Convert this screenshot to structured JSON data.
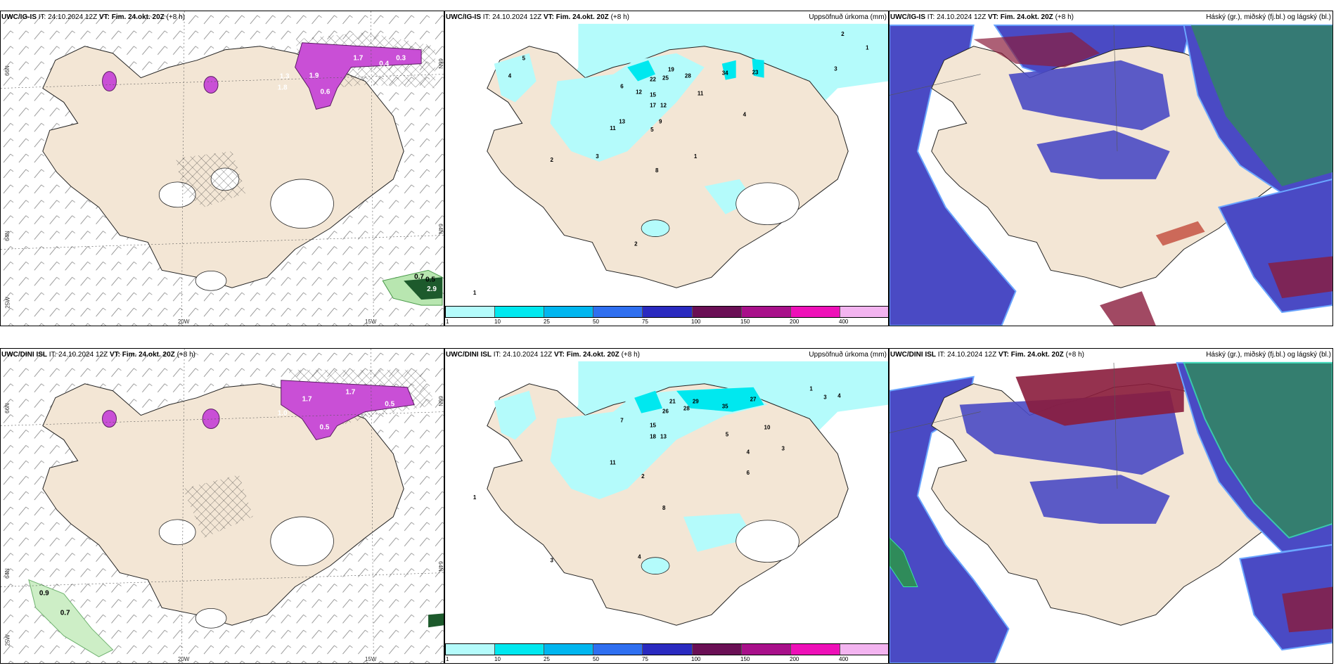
{
  "panels": [
    {
      "id": "top-left",
      "model": "UWC/IG-IS",
      "it": "IT: 24.10.2024 12Z",
      "vt_label": "VT:",
      "vt": "Fim. 24.okt. 20Z",
      "lead": "(+8 h)",
      "right_title": "",
      "axis": {
        "lat1": "66N",
        "lat2": "64N",
        "lat3": "25W",
        "lon1": "20W",
        "lon2": "15W",
        "lat_right": "66N",
        "lat_right2": "64N"
      },
      "labels": [
        "1.7",
        "0.4",
        "0.3",
        "1.9",
        "1.8",
        "1.3",
        "0.6",
        "0.7",
        "0.5",
        "2.9"
      ]
    },
    {
      "id": "top-mid",
      "model": "UWC/IG-IS",
      "it": "IT: 24.10.2024 12Z",
      "vt_label": "VT:",
      "vt": "Fim. 24.okt. 20Z",
      "lead": "(+8 h)",
      "right_title": "Uppsöfnuð úrkoma (mm)",
      "labels": [
        "2",
        "1",
        "3",
        "5",
        "4",
        "6",
        "22",
        "25",
        "19",
        "28",
        "34",
        "23",
        "12",
        "15",
        "17",
        "12",
        "11",
        "9",
        "13",
        "11",
        "5",
        "2",
        "3",
        "8",
        "1",
        "4",
        "2",
        "1"
      ]
    },
    {
      "id": "top-right",
      "model": "UWC/IG-IS",
      "it": "IT: 24.10.2024 12Z",
      "vt_label": "VT:",
      "vt": "Fim. 24.okt. 20Z",
      "lead": "(+8 h)",
      "right_title": "Háský (gr.), miðský (fj.bl.) og lágský (bl.)"
    },
    {
      "id": "bottom-left",
      "model": "UWC/DINI ISL",
      "it": "IT: 24.10.2024 12Z",
      "vt_label": "VT:",
      "vt": "Fim. 24.okt. 20Z",
      "lead": "(+8 h)",
      "right_title": "",
      "axis": {
        "lat1": "66N",
        "lat2": "64N",
        "lat3": "25W",
        "lon1": "20W",
        "lon2": "15W",
        "lat_right": "66N",
        "lat_right2": "64N"
      },
      "labels": [
        "1.7",
        "1.7",
        "1.0",
        "0.5",
        "0.5",
        "0.9",
        "0.7"
      ]
    },
    {
      "id": "bottom-mid",
      "model": "UWC/DINI ISL",
      "it": "IT: 24.10.2024 12Z",
      "vt_label": "VT:",
      "vt": "Fim. 24.okt. 20Z",
      "lead": "(+8 h)",
      "right_title": "Uppsöfnuð úrkoma (mm)",
      "labels": [
        "3",
        "4",
        "1",
        "21",
        "26",
        "28",
        "29",
        "35",
        "27",
        "15",
        "18",
        "13",
        "11",
        "7",
        "10",
        "8",
        "5",
        "4",
        "3",
        "2",
        "1",
        "6",
        "4",
        "3"
      ]
    },
    {
      "id": "bottom-right",
      "model": "UWC/DINI ISL",
      "it": "IT: 24.10.2024 12Z",
      "vt_label": "VT:",
      "vt": "Fim. 24.okt. 20Z",
      "lead": "(+8 h)",
      "right_title": "Háský (gr.), miðský (fj.bl.) og lágský (bl.)"
    }
  ],
  "colorbar": {
    "ticks": [
      "1",
      "10",
      "25",
      "50",
      "75",
      "100",
      "150",
      "200",
      "400"
    ],
    "colors": [
      "#b4fbfb",
      "#00e8ef",
      "#00b6ef",
      "#2f6ff0",
      "#2a2ac0",
      "#6a0f55",
      "#a8108a",
      "#ee10b8",
      "#f3b4f0"
    ]
  },
  "colors": {
    "land": "#f3e6d5",
    "precip_light": "#b4fbfb",
    "precip_mid": "#00e8ef",
    "snow_purple": "#c94fd6",
    "low_cloud": "#4040b8",
    "mid_cloud": "#8a1c3c",
    "high_cloud": "#2f8b5a"
  }
}
